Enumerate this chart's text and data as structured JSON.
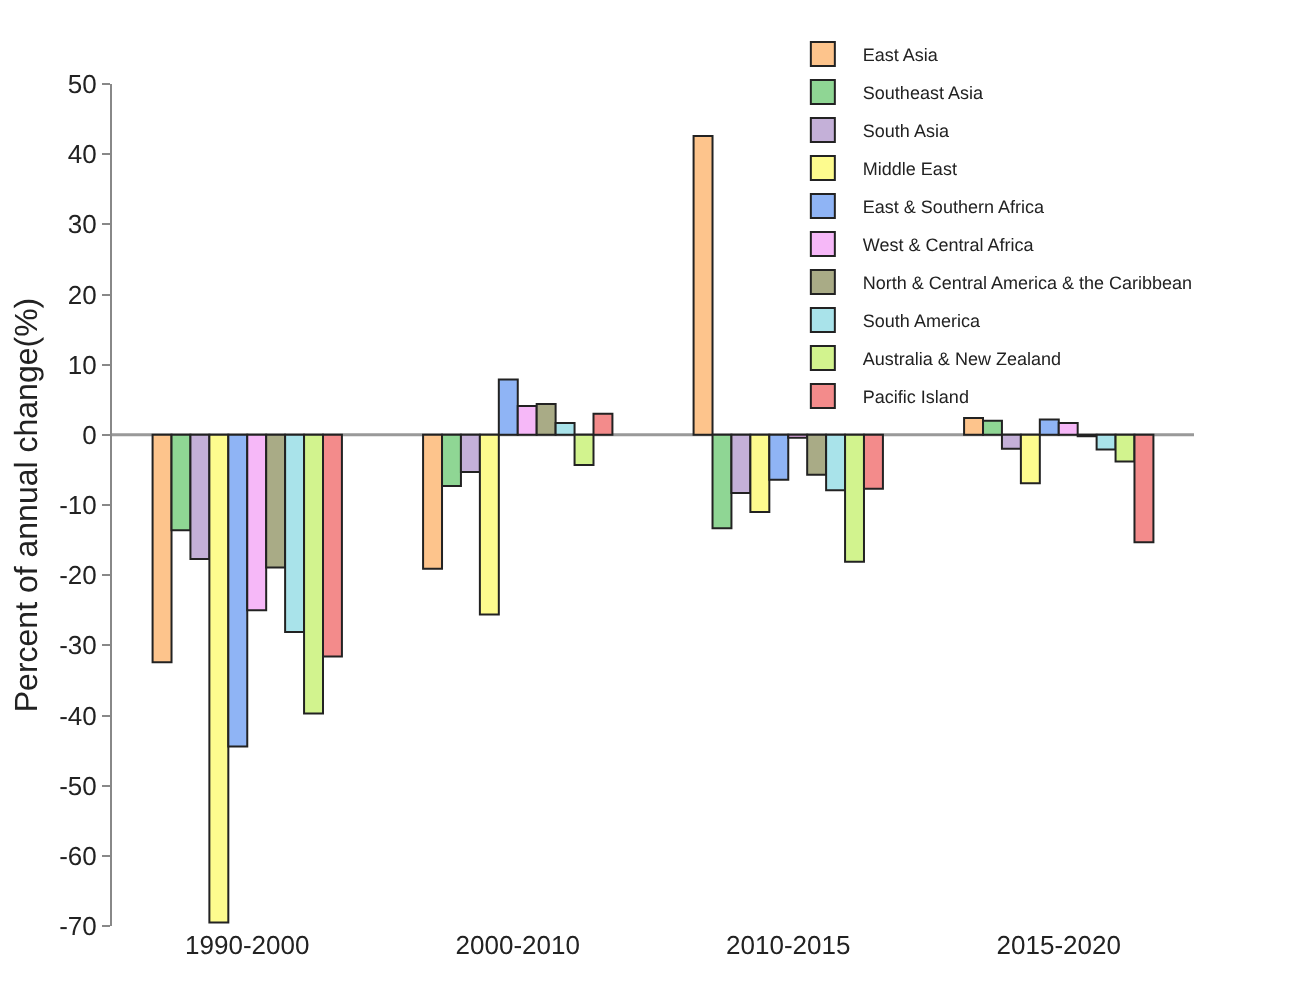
{
  "chart_data": {
    "type": "bar",
    "ylabel": "Percent of annual change(%)",
    "categories": [
      "1990-2000",
      "2000-2010",
      "2010-2015",
      "2015-2020"
    ],
    "ylim": [
      -70,
      50
    ],
    "yticks": [
      -70,
      -60,
      -50,
      -40,
      -30,
      -20,
      -10,
      0,
      10,
      20,
      30,
      40,
      50
    ],
    "grid": false,
    "legend": "top right",
    "ref_lines": [
      {
        "axis": "y",
        "value": 0,
        "color": "#999999"
      }
    ],
    "series": [
      {
        "name": "East Asia",
        "color": "#fdc48c",
        "values": [
          -32.4,
          -19.1,
          42.6,
          2.4
        ]
      },
      {
        "name": "Southeast Asia",
        "color": "#8fd694",
        "values": [
          -13.6,
          -7.3,
          -13.3,
          2.0
        ]
      },
      {
        "name": "South Asia",
        "color": "#c4b0d8",
        "values": [
          -17.7,
          -5.3,
          -8.3,
          -2.0
        ]
      },
      {
        "name": "Middle East",
        "color": "#fdfb8e",
        "values": [
          -69.5,
          -25.6,
          -11.0,
          -6.9
        ]
      },
      {
        "name": "East & Southern Africa",
        "color": "#8fb4f5",
        "values": [
          -44.4,
          7.9,
          -6.4,
          2.2
        ]
      },
      {
        "name": "West & Central Africa",
        "color": "#f6b8f8",
        "values": [
          -25.0,
          4.1,
          -0.4,
          1.7
        ]
      },
      {
        "name": "North & Central America & the Caribbean",
        "color": "#a9ab86",
        "values": [
          -18.9,
          4.4,
          -5.7,
          -0.2
        ]
      },
      {
        "name": "South America",
        "color": "#a9e3ea",
        "values": [
          -28.1,
          1.7,
          -7.9,
          -2.1
        ]
      },
      {
        "name": "Australia & New Zealand",
        "color": "#d2f38e",
        "values": [
          -39.7,
          -4.3,
          -18.1,
          -3.8
        ]
      },
      {
        "name": "Pacific Island",
        "color": "#f38b8b",
        "values": [
          -31.6,
          3.0,
          -7.7,
          -15.3
        ]
      }
    ]
  }
}
